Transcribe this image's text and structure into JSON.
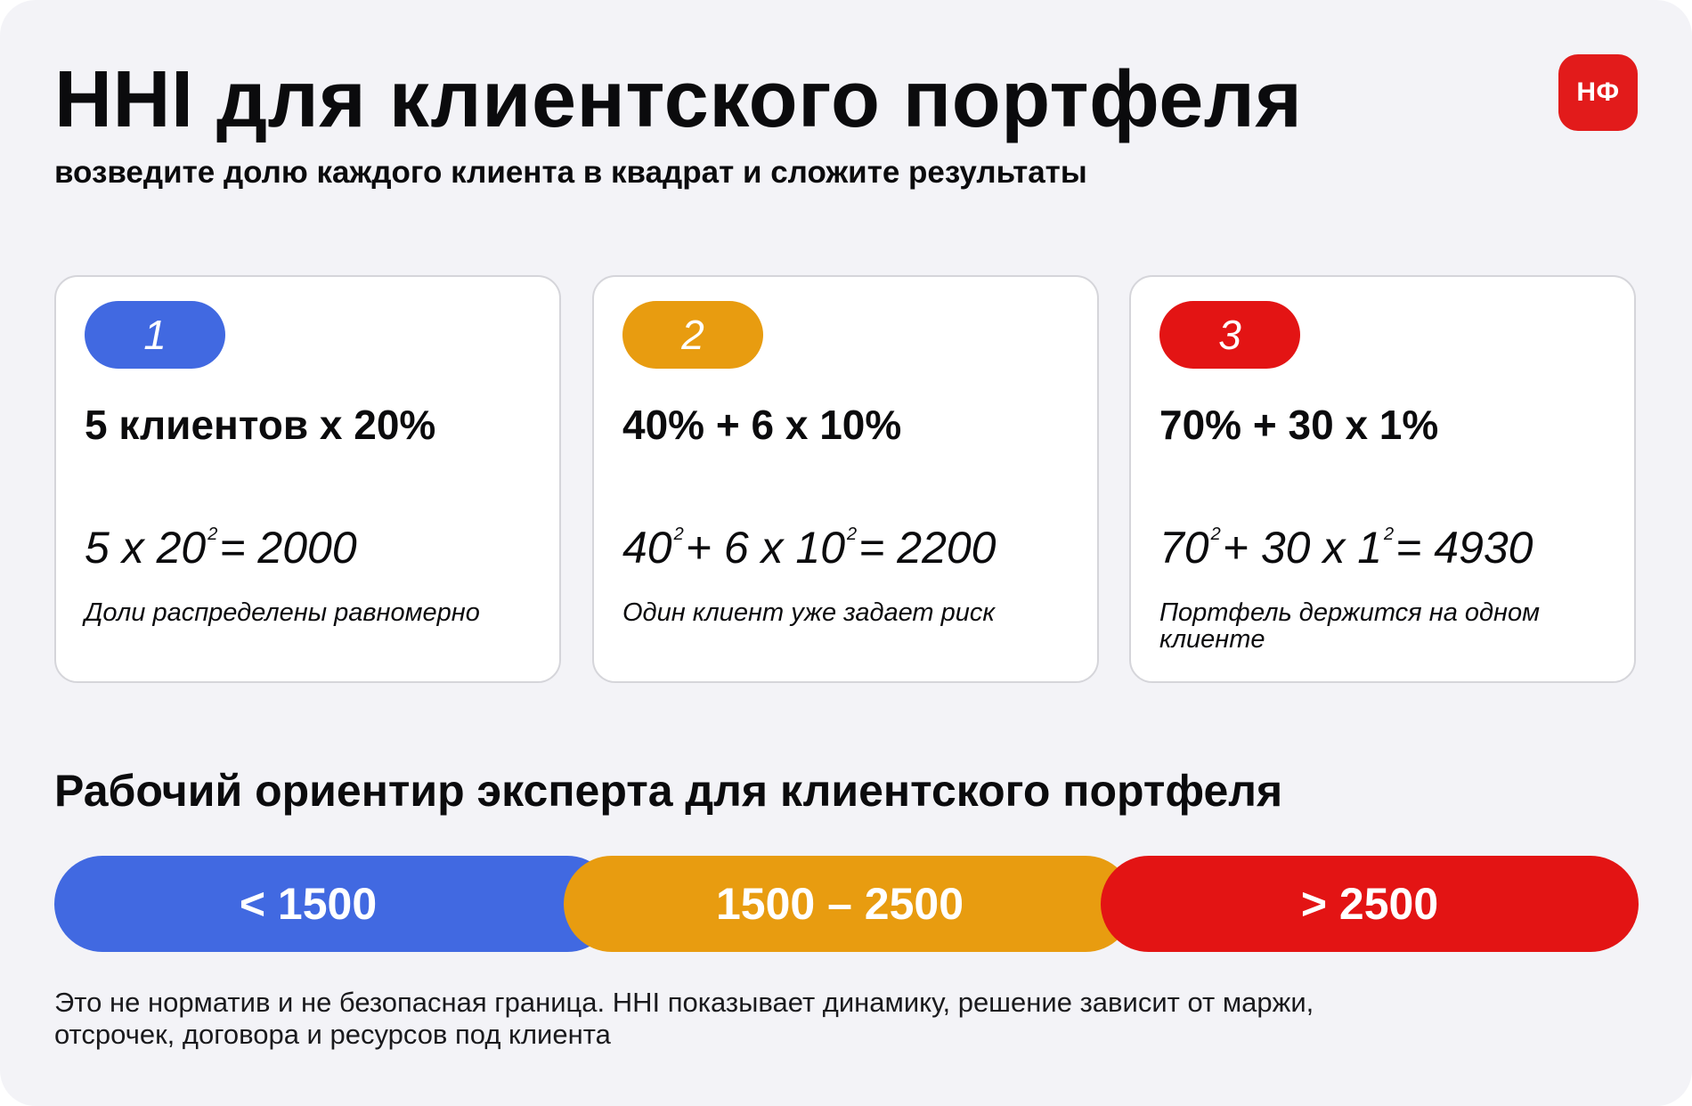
{
  "header": {
    "title": "HHI для клиентского портфеля",
    "subtitle": "возведите долю каждого клиента в квадрат и сложите результаты",
    "logo_text": "НФ"
  },
  "cards": [
    {
      "number": "1",
      "color": "#4169e1",
      "heading": "5 клиентов x 20%",
      "formula": {
        "a": "5 x 20",
        "a_exp": "2",
        "result": "= 2000"
      },
      "note": "Доли распределены равномерно"
    },
    {
      "number": "2",
      "color": "#e89c10",
      "heading": "40% + 6 x 10%",
      "formula": {
        "a": "40",
        "a_exp": "2",
        "b": "+ 6 x 10",
        "b_exp": "2",
        "result": "= 2200"
      },
      "note": "Один клиент уже задает риск"
    },
    {
      "number": "3",
      "color": "#e31414",
      "heading": "70% + 30 x 1%",
      "formula": {
        "a": "70",
        "a_exp": "2",
        "b": "+ 30 x 1",
        "b_exp": "2",
        "result": "= 4930"
      },
      "note": "Портфель держится на одном клиенте"
    }
  ],
  "benchmark": {
    "title": "Рабочий ориентир эксперта для клиентского портфеля",
    "segments": [
      {
        "label": "< 1500",
        "color": "#4169e1"
      },
      {
        "label": "1500 – 2500",
        "color": "#e89c10"
      },
      {
        "label": "> 2500",
        "color": "#e31414"
      }
    ],
    "footnote": "Это не норматив и не безопасная граница. HHI показывает динамику, решение зависит от маржи, отсрочек, договора и ресурсов под клиента"
  }
}
